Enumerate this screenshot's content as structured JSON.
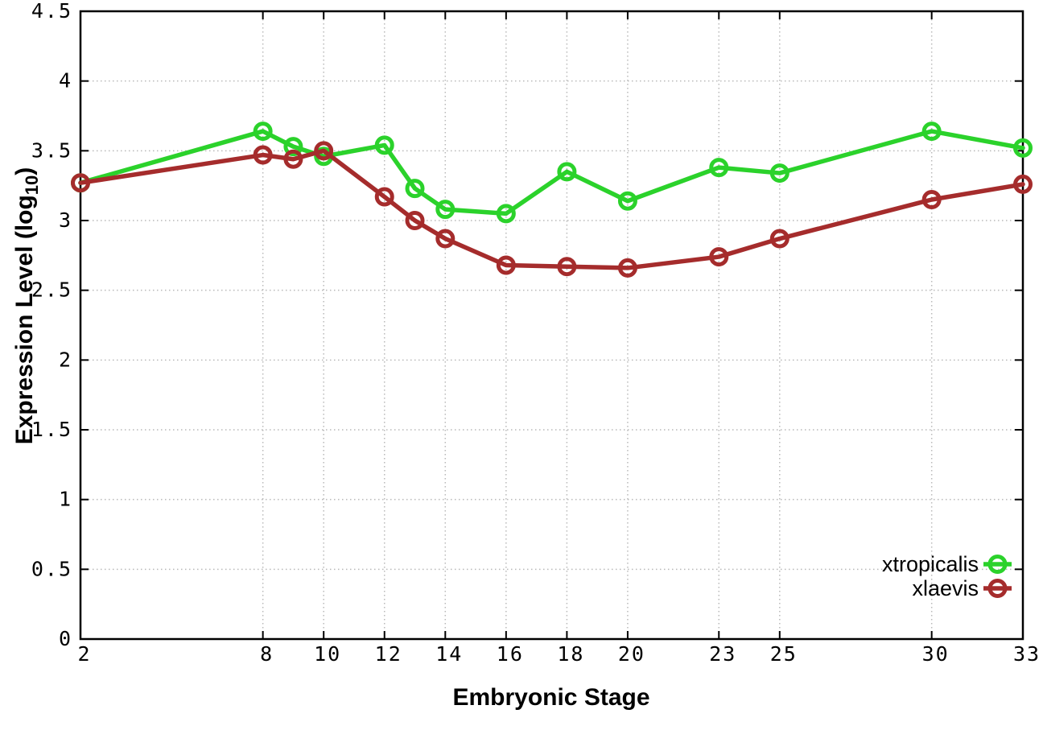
{
  "chart_data": {
    "type": "line",
    "title": "",
    "xlabel": "Embryonic Stage",
    "ylabel": "Expression Level (log10)",
    "ylabel_parts": {
      "pre": "Expression Level (log",
      "sub": "10",
      "post": ")"
    },
    "x": [
      2,
      8,
      9,
      10,
      12,
      13,
      14,
      16,
      18,
      20,
      23,
      25,
      30,
      33
    ],
    "series": [
      {
        "name": "xtropicalis",
        "color": "#2bd22b",
        "marker": "open-circle",
        "values": [
          3.27,
          3.64,
          3.53,
          3.46,
          3.54,
          3.23,
          3.08,
          3.05,
          3.35,
          3.14,
          3.38,
          3.34,
          3.64,
          3.52
        ]
      },
      {
        "name": "xlaevis",
        "color": "#a52c2c",
        "marker": "open-circle",
        "values": [
          3.27,
          3.47,
          3.44,
          3.5,
          3.17,
          3.0,
          2.87,
          2.68,
          2.67,
          2.66,
          2.74,
          2.87,
          3.15,
          3.26
        ]
      }
    ],
    "xlim": [
      2,
      33
    ],
    "ylim": [
      0,
      4.5
    ],
    "x_ticks": [
      2,
      8,
      10,
      12,
      14,
      16,
      18,
      20,
      23,
      25,
      30,
      33
    ],
    "x_tick_labels": [
      "2",
      "8",
      "10",
      "12",
      "14",
      "16",
      "18",
      "20",
      "23",
      "25",
      "30",
      "33"
    ],
    "y_ticks": [
      0,
      0.5,
      1,
      1.5,
      2,
      2.5,
      3,
      3.5,
      4,
      4.5
    ],
    "y_tick_labels": [
      "0",
      "0.5",
      "1",
      "1.5",
      "2",
      "2.5",
      "3",
      "3.5",
      "4",
      "4.5"
    ],
    "grid": "dotted",
    "legend_position": "inside-bottom-right"
  },
  "colors": {
    "background": "#ffffff",
    "grid": "#b9b9b9",
    "axis": "#000000",
    "text": "#000000",
    "series_xtropicalis": "#2bd22b",
    "series_xlaevis": "#a52c2c"
  }
}
